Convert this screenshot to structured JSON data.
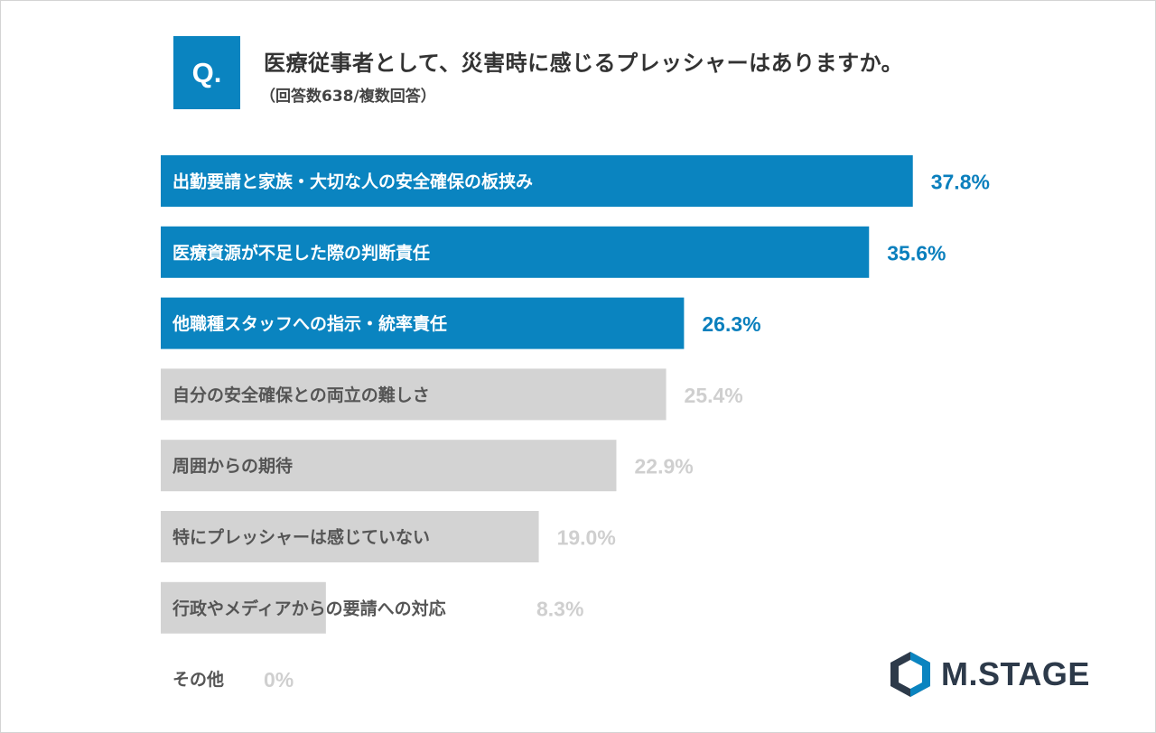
{
  "question_badge": "Q.",
  "title": "医療従事者として、災害時に感じるプレッシャーはありますか。",
  "subtitle": "（回答数638/複数回答）",
  "brand": {
    "logo_text": "M.STAGE",
    "logo_dark_color": "#2d3a4a",
    "logo_accent_color": "#0a84c0"
  },
  "colors": {
    "highlight_bar": "#0a84c0",
    "highlight_value": "#0a7fbd",
    "muted_bar": "#d3d3d3",
    "muted_value": "#cfcfcf",
    "highlight_label": "#ffffff",
    "muted_label": "#555555"
  },
  "chart_data": {
    "type": "bar",
    "orientation": "horizontal",
    "title": "医療従事者として、災害時に感じるプレッシャーはありますか。",
    "subtitle": "（回答数638/複数回答）",
    "xlim": [
      0,
      40
    ],
    "grid": false,
    "categories": [
      "出勤要請と家族・大切な人の安全確保の板挟み",
      "医療資源が不足した際の判断責任",
      "他職種スタッフへの指示・統率責任",
      "自分の安全確保との両立の難しさ",
      "周囲からの期待",
      "特にプレッシャーは感じていない",
      "行政やメディアからの要請への対応",
      "その他"
    ],
    "values": [
      37.8,
      35.6,
      26.3,
      25.4,
      22.9,
      19.0,
      8.3,
      0
    ],
    "value_labels": [
      "37.8%",
      "35.6%",
      "26.3%",
      "25.4%",
      "22.9%",
      "19.0%",
      "8.3%",
      "0%"
    ],
    "highlighted": [
      true,
      true,
      true,
      false,
      false,
      false,
      false,
      false
    ]
  }
}
